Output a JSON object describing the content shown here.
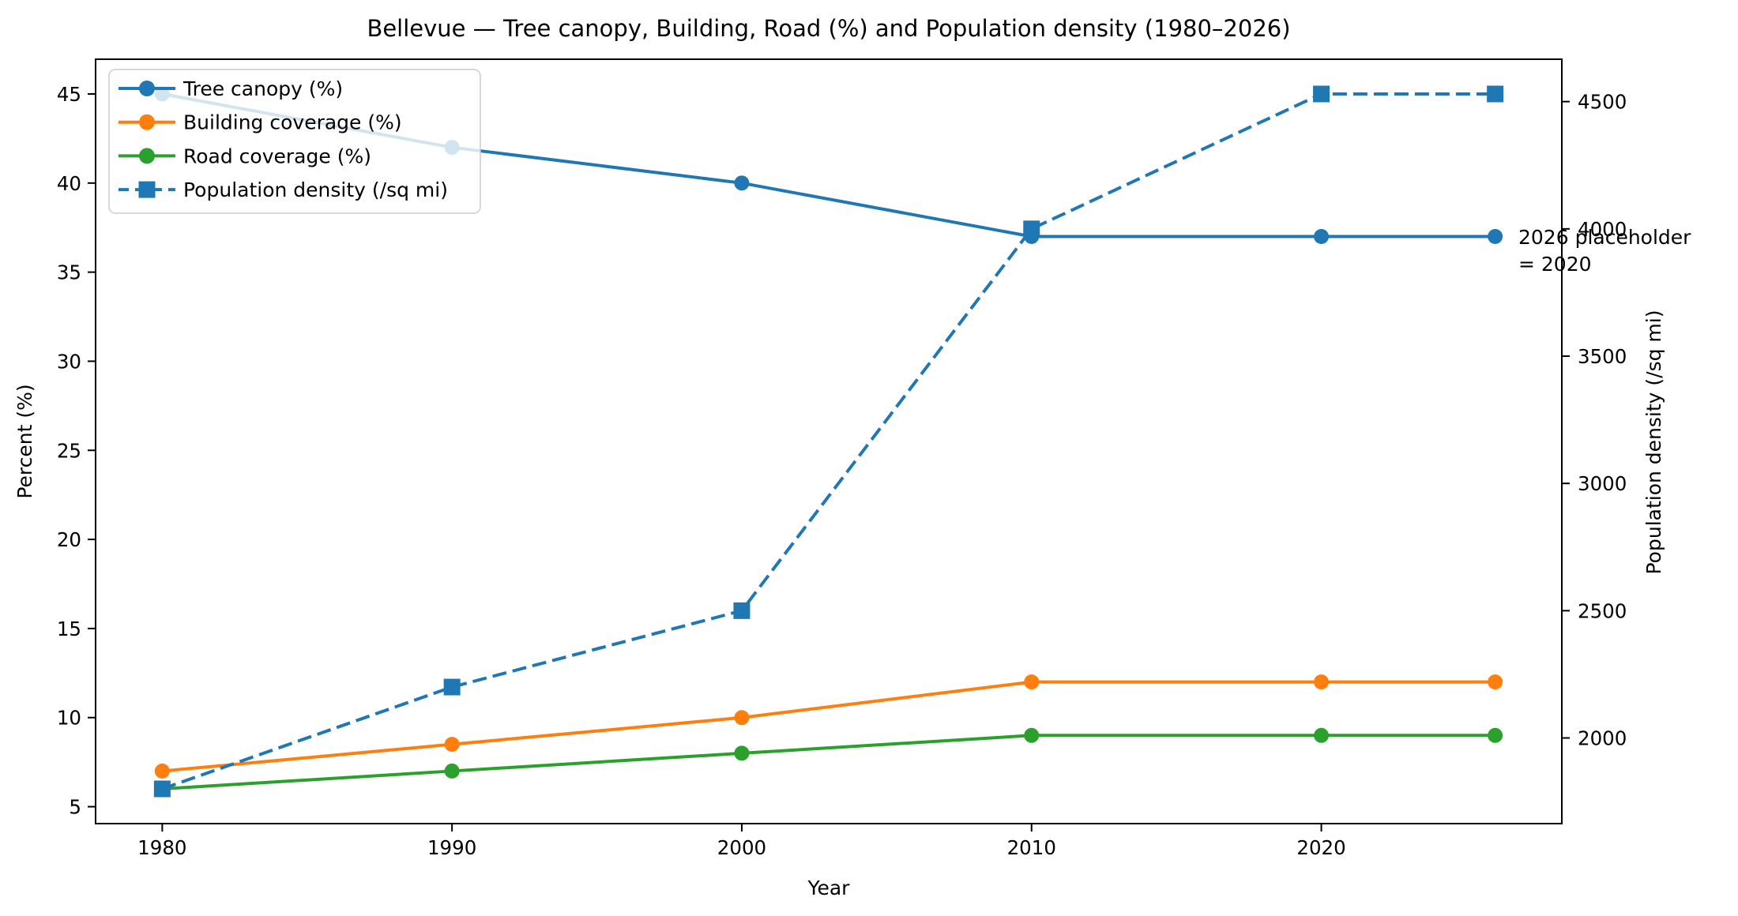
{
  "chart_data": {
    "type": "line",
    "title": "Bellevue — Tree canopy, Building, Road (%) and Population density (1980–2026)",
    "xlabel": "Year",
    "ylabel_left": "Percent (%)",
    "ylabel_right": "Population density (/sq mi)",
    "x": [
      1980,
      1990,
      2000,
      2010,
      2020,
      2026
    ],
    "x_ticks": [
      1980,
      1990,
      2000,
      2010,
      2020
    ],
    "x_axis": {
      "min": 1977.7,
      "max": 2028.3
    },
    "y_left": {
      "min": 4.05,
      "max": 46.95,
      "ticks": [
        5,
        10,
        15,
        20,
        25,
        30,
        35,
        40,
        45
      ]
    },
    "y_right": {
      "min": 1663.5,
      "max": 4666.5,
      "ticks": [
        2000,
        2500,
        3000,
        3500,
        4000,
        4500
      ]
    },
    "grid": false,
    "legend_position": "upper-left",
    "series": [
      {
        "name": "Tree canopy (%)",
        "color": "#1f77b4",
        "axis": "left",
        "marker": "circle",
        "line": "solid",
        "values": [
          45,
          42,
          40,
          37,
          37,
          37
        ]
      },
      {
        "name": "Building coverage (%)",
        "color": "#ff7f0e",
        "axis": "left",
        "marker": "circle",
        "line": "solid",
        "values": [
          7,
          8.5,
          10,
          12,
          12,
          12
        ]
      },
      {
        "name": "Road coverage (%)",
        "color": "#2ca02c",
        "axis": "left",
        "marker": "circle",
        "line": "solid",
        "values": [
          6,
          7,
          8,
          9,
          9,
          9
        ]
      },
      {
        "name": "Population density (/sq mi)",
        "color": "#1f77b4",
        "axis": "right",
        "marker": "square",
        "line": "dashed",
        "values": [
          1800,
          2200,
          2500,
          4000,
          4530,
          4530
        ]
      }
    ],
    "annotation": {
      "line1": "2026 placeholder",
      "line2": "= 2020"
    },
    "colors": {
      "axis": "#000000",
      "legend_border": "#cccccc",
      "legend_bg_alpha": 0.8
    }
  }
}
